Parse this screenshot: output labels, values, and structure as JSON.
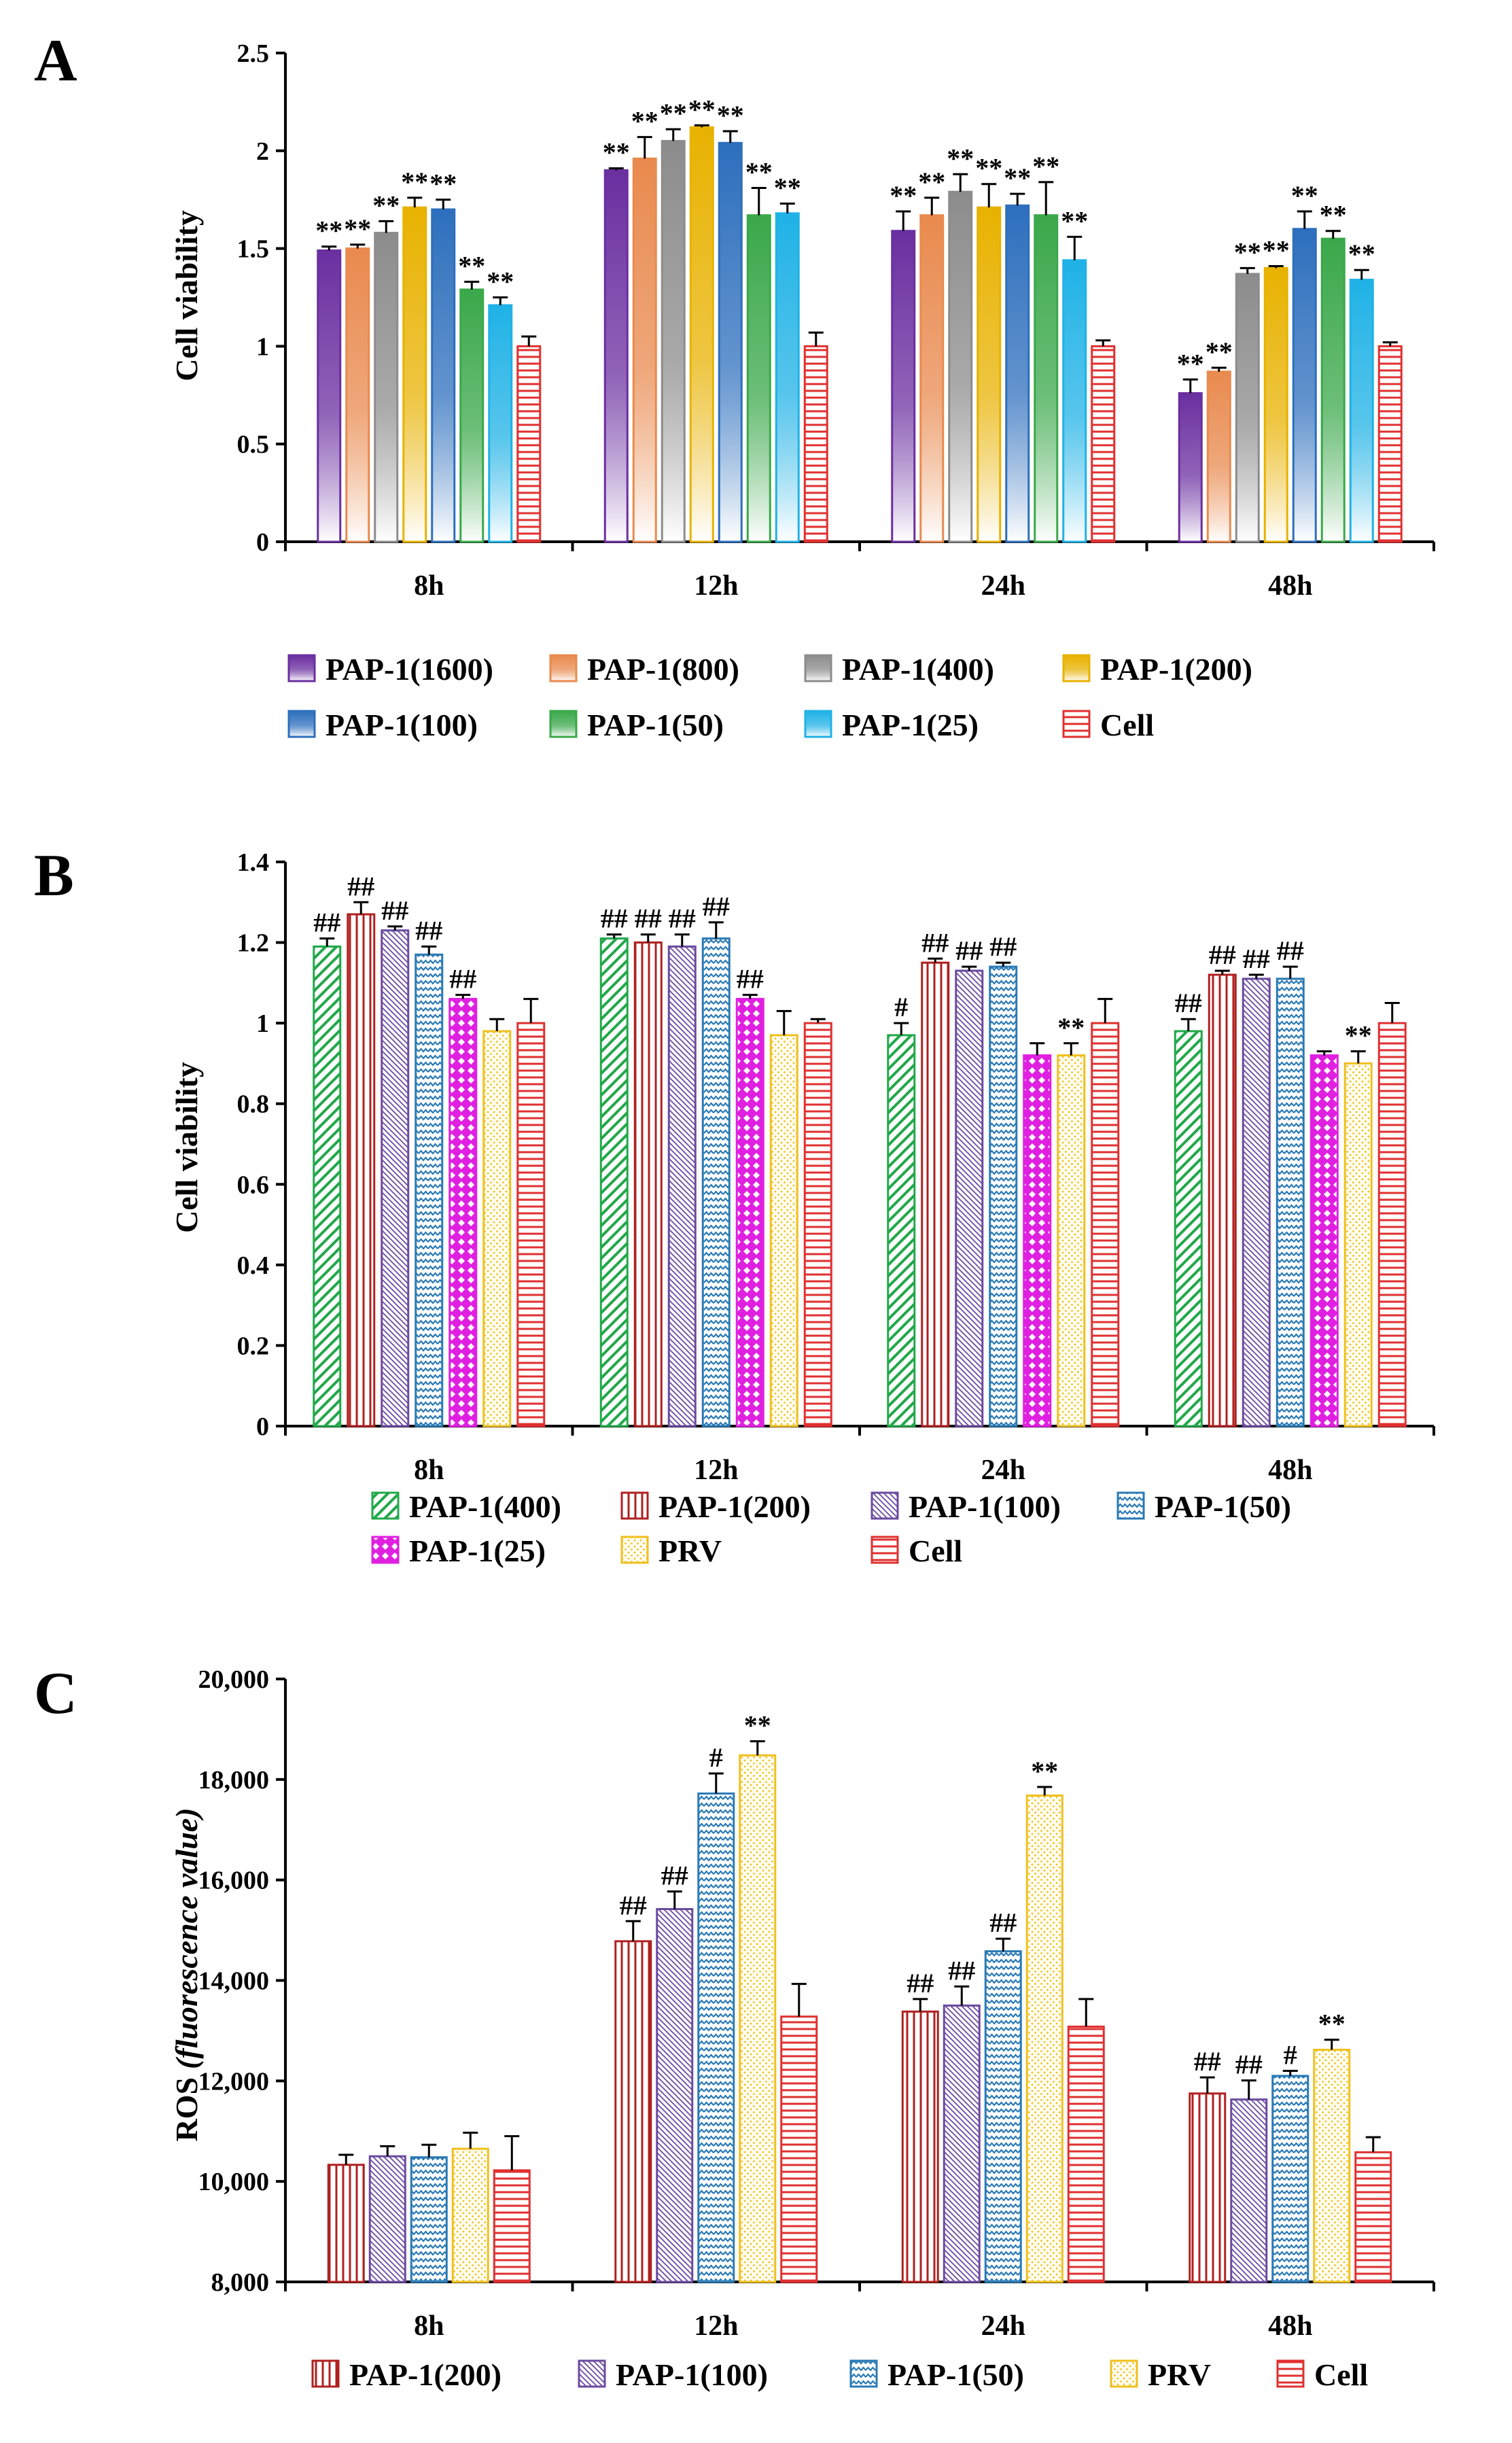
{
  "chart_data": [
    {
      "panel": "A",
      "type": "bar",
      "title": "",
      "xlabel": "",
      "ylabel": "Cell viability",
      "ylim": [
        0,
        2.5
      ],
      "yticks": [
        0,
        0.5,
        1,
        1.5,
        2,
        2.5
      ],
      "ytick_labels": [
        "0",
        "0.5",
        "1",
        "1.5",
        "2",
        "2.5"
      ],
      "categories": [
        "8h",
        "12h",
        "24h",
        "48h"
      ],
      "series": [
        {
          "name": "PAP-1(1600)",
          "color": "#6a2fa0",
          "pattern": "gradient",
          "values": [
            1.49,
            1.9,
            1.59,
            0.76
          ],
          "errors": [
            0.02,
            0.01,
            0.1,
            0.07
          ],
          "annotations": [
            "**",
            "**",
            "**",
            "**"
          ]
        },
        {
          "name": "PAP-1(800)",
          "color": "#e98a4e",
          "pattern": "gradient",
          "values": [
            1.5,
            1.96,
            1.67,
            0.87
          ],
          "errors": [
            0.02,
            0.11,
            0.09,
            0.02
          ],
          "annotations": [
            "**",
            "**",
            "**",
            "**"
          ]
        },
        {
          "name": "PAP-1(400)",
          "color": "#8c8c8c",
          "pattern": "gradient",
          "values": [
            1.58,
            2.05,
            1.79,
            1.37
          ],
          "errors": [
            0.06,
            0.06,
            0.09,
            0.03
          ],
          "annotations": [
            "**",
            "**",
            "**",
            "**"
          ]
        },
        {
          "name": "PAP-1(200)",
          "color": "#e8b200",
          "pattern": "gradient",
          "values": [
            1.71,
            2.12,
            1.71,
            1.4
          ],
          "errors": [
            0.05,
            0.01,
            0.12,
            0.01
          ],
          "annotations": [
            "**",
            "**",
            "**",
            "**"
          ]
        },
        {
          "name": "PAP-1(100)",
          "color": "#2d6fbd",
          "pattern": "gradient",
          "values": [
            1.7,
            2.04,
            1.72,
            1.6
          ],
          "errors": [
            0.05,
            0.06,
            0.06,
            0.09
          ],
          "annotations": [
            "**",
            "**",
            "**",
            "**"
          ]
        },
        {
          "name": "PAP-1(50)",
          "color": "#3aa84a",
          "pattern": "gradient",
          "values": [
            1.29,
            1.67,
            1.67,
            1.55
          ],
          "errors": [
            0.04,
            0.14,
            0.17,
            0.04
          ],
          "annotations": [
            "**",
            "**",
            "**",
            "**"
          ]
        },
        {
          "name": "PAP-1(25)",
          "color": "#1fb2e6",
          "pattern": "gradient",
          "values": [
            1.21,
            1.68,
            1.44,
            1.34
          ],
          "errors": [
            0.04,
            0.05,
            0.12,
            0.05
          ],
          "annotations": [
            "**",
            "**",
            "**",
            "**"
          ]
        },
        {
          "name": "Cell",
          "color": "#e03030",
          "pattern": "hlines",
          "values": [
            1.0,
            1.0,
            1.0,
            1.0
          ],
          "errors": [
            0.05,
            0.07,
            0.03,
            0.02
          ],
          "annotations": [
            "",
            "",
            "",
            ""
          ]
        }
      ]
    },
    {
      "panel": "B",
      "type": "bar",
      "title": "",
      "xlabel": "",
      "ylabel": "Cell viability",
      "ylim": [
        0,
        1.4
      ],
      "yticks": [
        0,
        0.2,
        0.4,
        0.6,
        0.8,
        1,
        1.2,
        1.4
      ],
      "ytick_labels": [
        "0",
        "0.2",
        "0.4",
        "0.6",
        "0.8",
        "1",
        "1.2",
        "1.4"
      ],
      "categories": [
        "8h",
        "12h",
        "24h",
        "48h"
      ],
      "series": [
        {
          "name": "PAP-1(400)",
          "color": "#22a84a",
          "pattern": "diag",
          "values": [
            1.19,
            1.21,
            0.97,
            0.98
          ],
          "errors": [
            0.02,
            0.01,
            0.03,
            0.03
          ],
          "annotations": [
            "##",
            "##",
            "#",
            "##"
          ]
        },
        {
          "name": "PAP-1(200)",
          "color": "#b02020",
          "pattern": "vlines",
          "values": [
            1.27,
            1.2,
            1.15,
            1.12
          ],
          "errors": [
            0.03,
            0.02,
            0.01,
            0.01
          ],
          "annotations": [
            "##",
            "##",
            "##",
            "##"
          ]
        },
        {
          "name": "PAP-1(100)",
          "color": "#6b4aa0",
          "pattern": "ddiag",
          "values": [
            1.23,
            1.19,
            1.13,
            1.11
          ],
          "errors": [
            0.01,
            0.03,
            0.01,
            0.01
          ],
          "annotations": [
            "##",
            "##",
            "##",
            "##"
          ]
        },
        {
          "name": "PAP-1(50)",
          "color": "#2a7ab5",
          "pattern": "zigzag",
          "values": [
            1.17,
            1.21,
            1.14,
            1.11
          ],
          "errors": [
            0.02,
            0.04,
            0.01,
            0.03
          ],
          "annotations": [
            "##",
            "##",
            "##",
            "##"
          ]
        },
        {
          "name": "PAP-1(25)",
          "color": "#e020e0",
          "pattern": "diamond",
          "values": [
            1.06,
            1.06,
            0.92,
            0.92
          ],
          "errors": [
            0.01,
            0.01,
            0.03,
            0.01
          ],
          "annotations": [
            "##",
            "##",
            "",
            ""
          ]
        },
        {
          "name": "PRV",
          "color": "#f0c020",
          "pattern": "dots",
          "values": [
            0.98,
            0.97,
            0.92,
            0.9
          ],
          "errors": [
            0.03,
            0.06,
            0.03,
            0.03
          ],
          "annotations": [
            "",
            "",
            "**",
            "**"
          ]
        },
        {
          "name": "Cell",
          "color": "#e03030",
          "pattern": "hlines",
          "values": [
            1.0,
            1.0,
            1.0,
            1.0
          ],
          "errors": [
            0.06,
            0.01,
            0.06,
            0.05
          ],
          "annotations": [
            "",
            "",
            "",
            ""
          ]
        }
      ]
    },
    {
      "panel": "C",
      "type": "bar",
      "title": "",
      "xlabel": "",
      "ylabel_main": "ROS",
      "ylabel_unit": "(fluorescence value)",
      "ylim": [
        8000,
        20000
      ],
      "yticks": [
        8000,
        10000,
        12000,
        14000,
        16000,
        18000,
        20000
      ],
      "ytick_labels": [
        "8,000",
        "10,000",
        "12,000",
        "14,000",
        "16,000",
        "18,000",
        "20,000"
      ],
      "categories": [
        "8h",
        "12h",
        "24h",
        "48h"
      ],
      "series": [
        {
          "name": "PAP-1(200)",
          "color": "#b02020",
          "pattern": "vlines",
          "values": [
            10330,
            14780,
            13380,
            11750
          ],
          "errors": [
            200,
            400,
            250,
            320
          ],
          "annotations": [
            "",
            "##",
            "##",
            "##"
          ]
        },
        {
          "name": "PAP-1(100)",
          "color": "#6b4aa0",
          "pattern": "ddiag",
          "values": [
            10500,
            15420,
            13500,
            11630
          ],
          "errors": [
            200,
            350,
            380,
            380
          ],
          "annotations": [
            "",
            "##",
            "##",
            "##"
          ]
        },
        {
          "name": "PAP-1(50)",
          "color": "#2a7ab5",
          "pattern": "zigzag",
          "values": [
            10480,
            17720,
            14580,
            12100
          ],
          "errors": [
            250,
            400,
            250,
            100
          ],
          "annotations": [
            "",
            "#",
            "##",
            "#"
          ]
        },
        {
          "name": "PRV",
          "color": "#f0c020",
          "pattern": "dots",
          "values": [
            10650,
            18480,
            17680,
            12620
          ],
          "errors": [
            320,
            280,
            170,
            200
          ],
          "annotations": [
            "",
            "**",
            "**",
            "**"
          ]
        },
        {
          "name": "Cell",
          "color": "#e03030",
          "pattern": "hlines",
          "values": [
            10220,
            13280,
            13080,
            10580
          ],
          "errors": [
            680,
            650,
            550,
            300
          ],
          "annotations": [
            "",
            "",
            "",
            ""
          ]
        }
      ]
    }
  ]
}
